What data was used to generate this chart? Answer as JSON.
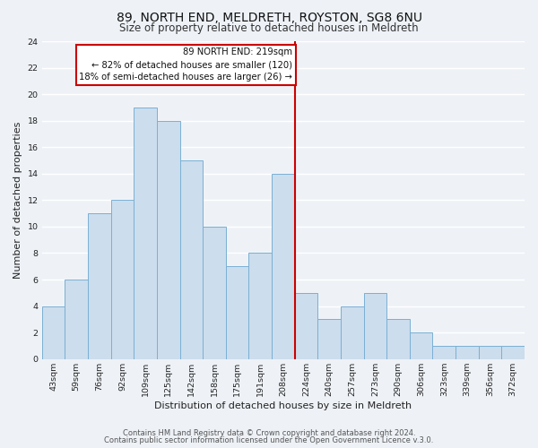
{
  "title": "89, NORTH END, MELDRETH, ROYSTON, SG8 6NU",
  "subtitle": "Size of property relative to detached houses in Meldreth",
  "xlabel": "Distribution of detached houses by size in Meldreth",
  "ylabel": "Number of detached properties",
  "bin_labels": [
    "43sqm",
    "59sqm",
    "76sqm",
    "92sqm",
    "109sqm",
    "125sqm",
    "142sqm",
    "158sqm",
    "175sqm",
    "191sqm",
    "208sqm",
    "224sqm",
    "240sqm",
    "257sqm",
    "273sqm",
    "290sqm",
    "306sqm",
    "323sqm",
    "339sqm",
    "356sqm",
    "372sqm"
  ],
  "bar_heights": [
    4,
    6,
    11,
    12,
    19,
    18,
    15,
    10,
    7,
    8,
    14,
    5,
    3,
    4,
    5,
    3,
    2,
    1,
    1,
    1,
    1
  ],
  "bar_color": "#ccdded",
  "bar_edge_color": "#7ab0d4",
  "vline_color": "#cc0000",
  "annotation_title": "89 NORTH END: 219sqm",
  "annotation_line1": "← 82% of detached houses are smaller (120)",
  "annotation_line2": "18% of semi-detached houses are larger (26) →",
  "annotation_box_color": "#ffffff",
  "annotation_box_edge": "#cc0000",
  "ylim": [
    0,
    24
  ],
  "yticks": [
    0,
    2,
    4,
    6,
    8,
    10,
    12,
    14,
    16,
    18,
    20,
    22,
    24
  ],
  "footer1": "Contains HM Land Registry data © Crown copyright and database right 2024.",
  "footer2": "Contains public sector information licensed under the Open Government Licence v.3.0.",
  "bg_color": "#eef2f7",
  "grid_color": "#ffffff",
  "title_fontsize": 10,
  "subtitle_fontsize": 8.5,
  "axis_label_fontsize": 8,
  "tick_fontsize": 6.8,
  "footer_fontsize": 6,
  "vline_index": 11
}
